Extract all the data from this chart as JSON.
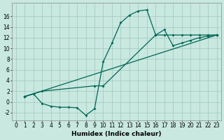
{
  "background_color": "#c8e8e0",
  "grid_color": "#a0c8bc",
  "line_color": "#006655",
  "marker": "D",
  "markersize": 2.0,
  "linewidth": 0.9,
  "xlabel": "Humidex (Indice chaleur)",
  "xlabel_fontsize": 6.5,
  "tick_fontsize": 5.5,
  "xlim": [
    -0.5,
    23.5
  ],
  "ylim": [
    -3.5,
    18.5
  ],
  "xticks": [
    0,
    1,
    2,
    3,
    4,
    5,
    6,
    7,
    8,
    9,
    10,
    11,
    12,
    13,
    14,
    15,
    16,
    17,
    18,
    19,
    20,
    21,
    22,
    23
  ],
  "yticks": [
    -2,
    0,
    2,
    4,
    6,
    8,
    10,
    12,
    14,
    16
  ],
  "line1_x": [
    1,
    2,
    3,
    4,
    5,
    6,
    7,
    8,
    9,
    10,
    11,
    12,
    13,
    14,
    15,
    16,
    17,
    18,
    19,
    20,
    21,
    22,
    23
  ],
  "line1_y": [
    1.0,
    1.5,
    -0.3,
    -0.8,
    -1.0,
    -1.0,
    -1.1,
    -2.5,
    -1.3,
    7.5,
    11.0,
    14.8,
    16.2,
    17.0,
    17.2,
    12.5,
    12.5,
    12.5,
    12.5,
    12.5,
    12.5,
    12.5,
    12.5
  ],
  "line2_x": [
    1,
    2,
    3,
    9,
    10,
    16,
    17,
    18,
    19,
    20,
    21,
    22,
    23
  ],
  "line2_y": [
    1.0,
    1.5,
    2.0,
    3.0,
    3.0,
    12.5,
    13.5,
    10.5,
    11.0,
    11.5,
    12.0,
    12.3,
    12.5
  ],
  "line3_x": [
    1,
    23
  ],
  "line3_y": [
    1.0,
    12.5
  ]
}
